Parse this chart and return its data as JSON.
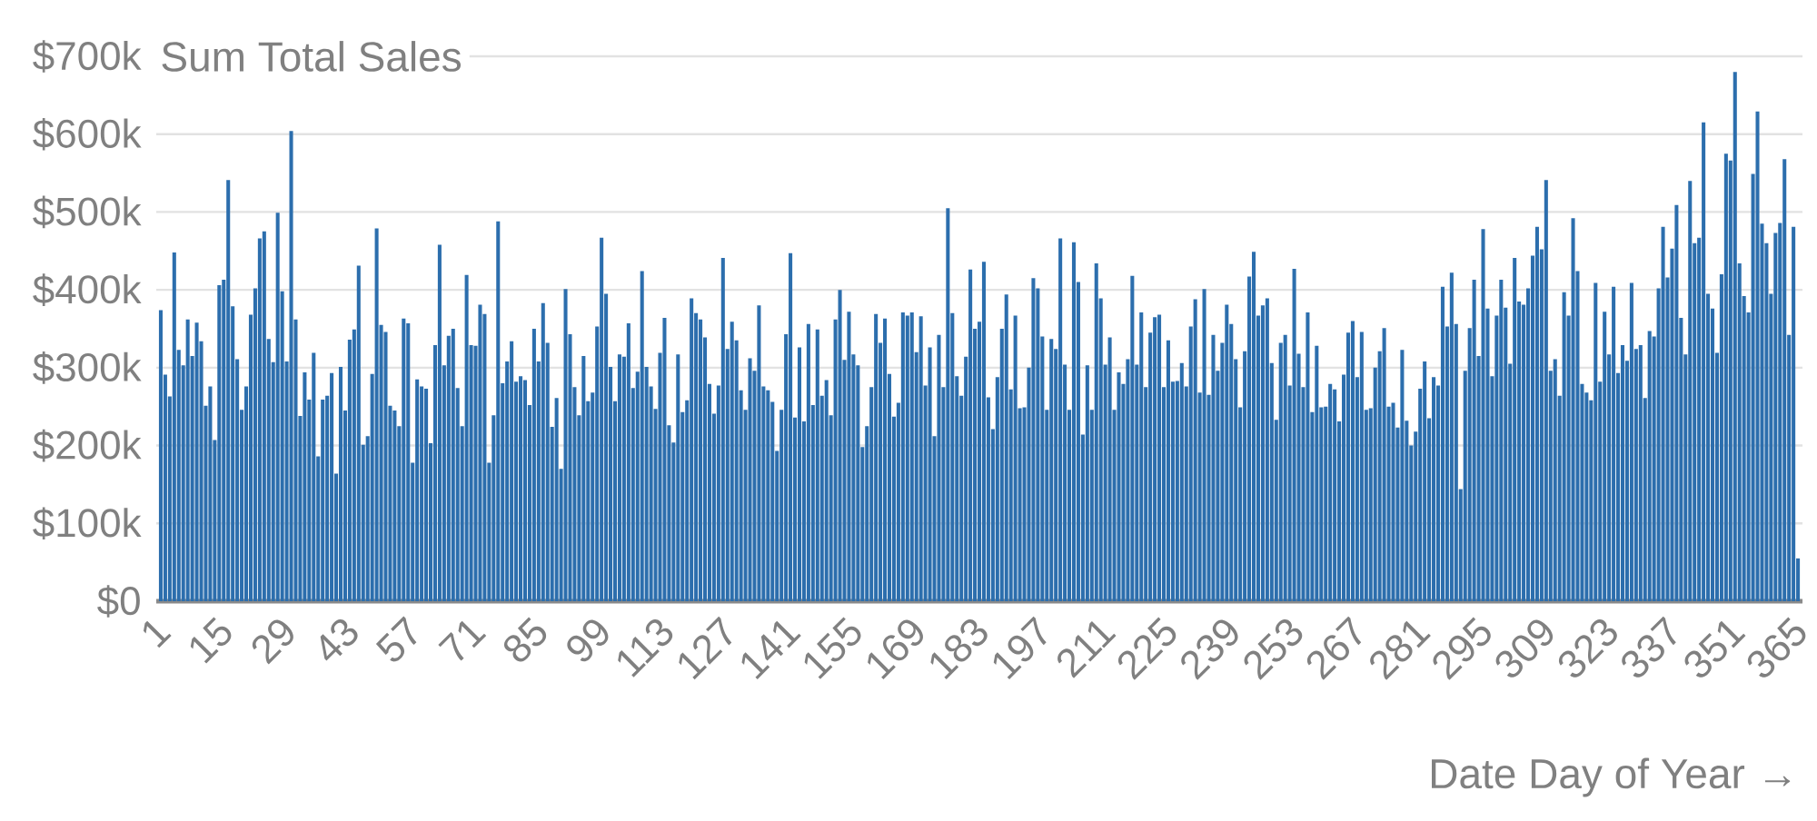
{
  "chart_data": {
    "type": "bar",
    "ylabel": "Sum Total Sales",
    "xlabel": "Date Day of Year →",
    "color": "#2c6ead",
    "grid": "y",
    "xlim": [
      0,
      366
    ],
    "xticks": [
      1,
      15,
      29,
      43,
      57,
      71,
      85,
      99,
      113,
      127,
      141,
      155,
      169,
      183,
      197,
      211,
      225,
      239,
      253,
      267,
      281,
      295,
      309,
      323,
      337,
      351,
      365
    ],
    "ylim": [
      0,
      700000
    ],
    "yticks": [
      {
        "value": 0,
        "label": "$0"
      },
      {
        "value": 100000,
        "label": "$100k"
      },
      {
        "value": 200000,
        "label": "$200k"
      },
      {
        "value": 300000,
        "label": "$300k"
      },
      {
        "value": 400000,
        "label": "$400k"
      },
      {
        "value": 500000,
        "label": "$500k"
      },
      {
        "value": 600000,
        "label": "$600k"
      },
      {
        "value": 700000,
        "label": "$700k"
      }
    ],
    "x": [
      1,
      2,
      3,
      4,
      5,
      6,
      7,
      8,
      9,
      10,
      11,
      12,
      13,
      14,
      15,
      16,
      17,
      18,
      19,
      20,
      21,
      22,
      23,
      24,
      25,
      26,
      27,
      28,
      29,
      30,
      31,
      32,
      33,
      34,
      35,
      36,
      37,
      38,
      39,
      40,
      41,
      42,
      43,
      44,
      45,
      46,
      47,
      48,
      49,
      50,
      51,
      52,
      53,
      54,
      55,
      56,
      57,
      58,
      59,
      60,
      61,
      62,
      63,
      64,
      65,
      66,
      67,
      68,
      69,
      70,
      71,
      72,
      73,
      74,
      75,
      76,
      77,
      78,
      79,
      80,
      81,
      82,
      83,
      84,
      85,
      86,
      87,
      88,
      89,
      90,
      91,
      92,
      93,
      94,
      95,
      96,
      97,
      98,
      99,
      100,
      101,
      102,
      103,
      104,
      105,
      106,
      107,
      108,
      109,
      110,
      111,
      112,
      113,
      114,
      115,
      116,
      117,
      118,
      119,
      120,
      121,
      122,
      123,
      124,
      125,
      126,
      127,
      128,
      129,
      130,
      131,
      132,
      133,
      134,
      135,
      136,
      137,
      138,
      139,
      140,
      141,
      142,
      143,
      144,
      145,
      146,
      147,
      148,
      149,
      150,
      151,
      152,
      153,
      154,
      155,
      156,
      157,
      158,
      159,
      160,
      161,
      162,
      163,
      164,
      165,
      166,
      167,
      168,
      169,
      170,
      171,
      172,
      173,
      174,
      175,
      176,
      177,
      178,
      179,
      180,
      181,
      182,
      183,
      184,
      185,
      186,
      187,
      188,
      189,
      190,
      191,
      192,
      193,
      194,
      195,
      196,
      197,
      198,
      199,
      200,
      201,
      202,
      203,
      204,
      205,
      206,
      207,
      208,
      209,
      210,
      211,
      212,
      213,
      214,
      215,
      216,
      217,
      218,
      219,
      220,
      221,
      222,
      223,
      224,
      225,
      226,
      227,
      228,
      229,
      230,
      231,
      232,
      233,
      234,
      235,
      236,
      237,
      238,
      239,
      240,
      241,
      242,
      243,
      244,
      245,
      246,
      247,
      248,
      249,
      250,
      251,
      252,
      253,
      254,
      255,
      256,
      257,
      258,
      259,
      260,
      261,
      262,
      263,
      264,
      265,
      266,
      267,
      268,
      269,
      270,
      271,
      272,
      273,
      274,
      275,
      276,
      277,
      278,
      279,
      280,
      281,
      282,
      283,
      284,
      285,
      286,
      287,
      288,
      289,
      290,
      291,
      292,
      293,
      294,
      295,
      296,
      297,
      298,
      299,
      300,
      301,
      302,
      303,
      304,
      305,
      306,
      307,
      308,
      309,
      310,
      311,
      312,
      313,
      314,
      315,
      316,
      317,
      318,
      319,
      320,
      321,
      322,
      323,
      324,
      325,
      326,
      327,
      328,
      329,
      330,
      331,
      332,
      333,
      334,
      335,
      336,
      337,
      338,
      339,
      340,
      341,
      342,
      343,
      344,
      345,
      346,
      347,
      348,
      349,
      350,
      351,
      352,
      353,
      354,
      355,
      356,
      357,
      358,
      359,
      360,
      361,
      362,
      363,
      364,
      365
    ],
    "values": [
      374000,
      291000,
      263000,
      448000,
      323000,
      303000,
      362000,
      315000,
      358000,
      334000,
      251000,
      276000,
      207000,
      406000,
      413000,
      541000,
      379000,
      311000,
      246000,
      276000,
      368000,
      402000,
      466000,
      475000,
      337000,
      307000,
      499000,
      398000,
      308000,
      604000,
      362000,
      238000,
      294000,
      259000,
      319000,
      186000,
      259000,
      264000,
      293000,
      164000,
      301000,
      245000,
      336000,
      349000,
      431000,
      201000,
      212000,
      292000,
      479000,
      355000,
      346000,
      251000,
      245000,
      225000,
      363000,
      357000,
      178000,
      285000,
      276000,
      273000,
      203000,
      329000,
      458000,
      303000,
      341000,
      350000,
      274000,
      225000,
      419000,
      329000,
      328000,
      381000,
      369000,
      178000,
      239000,
      488000,
      280000,
      308000,
      334000,
      282000,
      289000,
      284000,
      252000,
      350000,
      308000,
      383000,
      332000,
      224000,
      261000,
      170000,
      401000,
      343000,
      275000,
      239000,
      315000,
      257000,
      268000,
      353000,
      467000,
      395000,
      301000,
      257000,
      317000,
      314000,
      357000,
      274000,
      295000,
      424000,
      301000,
      276000,
      247000,
      319000,
      364000,
      226000,
      204000,
      317000,
      243000,
      258000,
      389000,
      370000,
      362000,
      339000,
      279000,
      241000,
      277000,
      441000,
      324000,
      359000,
      335000,
      271000,
      246000,
      312000,
      296000,
      380000,
      276000,
      271000,
      256000,
      193000,
      246000,
      343000,
      447000,
      236000,
      326000,
      231000,
      356000,
      252000,
      349000,
      264000,
      284000,
      239000,
      362000,
      400000,
      310000,
      372000,
      317000,
      303000,
      198000,
      225000,
      275000,
      369000,
      332000,
      363000,
      292000,
      237000,
      255000,
      371000,
      367000,
      371000,
      320000,
      366000,
      277000,
      326000,
      212000,
      342000,
      275000,
      505000,
      370000,
      289000,
      264000,
      314000,
      426000,
      350000,
      359000,
      436000,
      262000,
      221000,
      288000,
      350000,
      394000,
      272000,
      367000,
      248000,
      249000,
      300000,
      415000,
      402000,
      340000,
      246000,
      337000,
      324000,
      466000,
      304000,
      246000,
      461000,
      410000,
      214000,
      303000,
      246000,
      434000,
      389000,
      304000,
      339000,
      246000,
      294000,
      279000,
      311000,
      418000,
      304000,
      371000,
      275000,
      345000,
      365000,
      368000,
      275000,
      335000,
      282000,
      283000,
      306000,
      276000,
      353000,
      388000,
      268000,
      401000,
      265000,
      342000,
      296000,
      332000,
      381000,
      356000,
      311000,
      249000,
      321000,
      417000,
      449000,
      367000,
      380000,
      389000,
      306000,
      233000,
      332000,
      342000,
      277000,
      427000,
      318000,
      275000,
      371000,
      243000,
      328000,
      249000,
      250000,
      279000,
      272000,
      231000,
      291000,
      345000,
      360000,
      288000,
      346000,
      246000,
      248000,
      300000,
      321000,
      351000,
      250000,
      255000,
      223000,
      323000,
      232000,
      200000,
      218000,
      273000,
      308000,
      235000,
      288000,
      277000,
      404000,
      353000,
      422000,
      356000,
      144000,
      296000,
      351000,
      413000,
      315000,
      478000,
      376000,
      289000,
      367000,
      413000,
      377000,
      305000,
      441000,
      385000,
      381000,
      402000,
      444000,
      481000,
      452000,
      541000,
      296000,
      311000,
      264000,
      397000,
      367000,
      492000,
      424000,
      279000,
      268000,
      258000,
      409000,
      282000,
      372000,
      317000,
      404000,
      293000,
      329000,
      309000,
      409000,
      324000,
      329000,
      261000,
      347000,
      340000,
      402000,
      481000,
      416000,
      453000,
      509000,
      364000,
      317000,
      540000,
      460000,
      467000,
      615000,
      395000,
      376000,
      319000,
      420000,
      575000,
      566000,
      680000,
      434000,
      392000,
      371000,
      549000,
      629000,
      485000,
      460000,
      395000,
      473000,
      486000,
      568000,
      342000,
      481000,
      55000
    ]
  }
}
